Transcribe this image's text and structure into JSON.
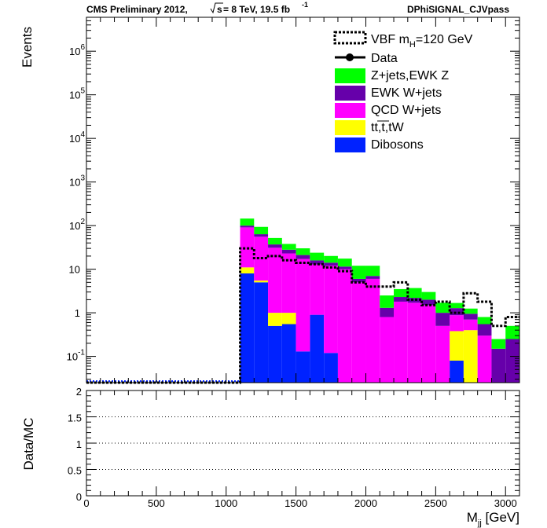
{
  "header": {
    "left": "CMS Preliminary 2012,",
    "sqrt": "s",
    "energy": " = 8 TeV, 19.5 fb",
    "lumi_exp": "-1",
    "right": "DPhiSIGNAL_CJVpass"
  },
  "chart_data": [
    {
      "type": "bar",
      "stacked": true,
      "ylabel": "Events",
      "yscale": "log",
      "ylim": [
        0.025,
        6000000
      ],
      "xlim": [
        0,
        3100
      ],
      "bin_edges": [
        0,
        100,
        200,
        300,
        400,
        500,
        600,
        700,
        800,
        900,
        1000,
        1100,
        1200,
        1300,
        1400,
        1500,
        1600,
        1700,
        1800,
        1900,
        2000,
        2100,
        2200,
        2300,
        2400,
        2500,
        2600,
        2700,
        2800,
        2900,
        3000,
        3100
      ],
      "series": [
        {
          "name": "Dibosons",
          "color": "#0022ff",
          "values": [
            0,
            0,
            0,
            0,
            0,
            0,
            0,
            0,
            0,
            0,
            0,
            8,
            5,
            0.5,
            0.55,
            0.13,
            0.9,
            0.12,
            0,
            0,
            0,
            0,
            0,
            0,
            0,
            0,
            0.08,
            0,
            0,
            0,
            0
          ]
        },
        {
          "name": "tt,t,tW",
          "color": "#ffff00",
          "values": [
            0,
            0,
            0,
            0,
            0,
            0,
            0,
            0,
            0,
            0,
            0,
            3,
            0.5,
            0.5,
            0.45,
            0,
            0,
            0,
            0,
            0,
            0,
            0,
            0,
            0,
            0,
            0,
            0.3,
            0.4,
            0,
            0,
            0
          ]
        },
        {
          "name": "QCD W+jets",
          "color": "#ff00ff",
          "values": [
            0,
            0,
            0,
            0,
            0,
            0,
            0,
            0,
            0,
            0,
            0,
            80,
            50,
            30,
            22,
            17,
            12,
            12,
            10,
            5,
            6,
            0.8,
            1.8,
            1.7,
            1.5,
            0.5,
            0.5,
            0.3,
            0.3,
            0,
            0
          ]
        },
        {
          "name": "EWK W+jets",
          "color": "#6600aa",
          "values": [
            0,
            0,
            0,
            0,
            0,
            0,
            0,
            0,
            0,
            0,
            0,
            9,
            8,
            6,
            5,
            4,
            3,
            2,
            1.5,
            1,
            1,
            0.5,
            0.5,
            0.5,
            0.5,
            0.5,
            0.4,
            0.25,
            0.25,
            0.15,
            0.25
          ]
        },
        {
          "name": "Z+jets,EWK Z",
          "color": "#00ff00",
          "values": [
            0,
            0,
            0,
            0,
            0,
            0,
            0,
            0,
            0,
            0,
            0,
            45,
            30,
            15,
            10,
            9,
            8,
            6,
            6,
            6,
            5,
            1.2,
            1.2,
            1.5,
            1.0,
            0.7,
            0.4,
            0.3,
            0.25,
            0.1,
            0.25
          ]
        }
      ],
      "signal": {
        "name": "VBF m_H=120 GeV",
        "legend_main": "VBF m",
        "legend_sub": "H",
        "legend_tail": "=120 GeV",
        "values": [
          0,
          0,
          0,
          0,
          0,
          0,
          0,
          0,
          0,
          0,
          0,
          30,
          18,
          20,
          16,
          14,
          13,
          11,
          9,
          5,
          4,
          4,
          5,
          2,
          1.5,
          1.8,
          1.0,
          2.8,
          1.8,
          0.5,
          0.8
        ]
      },
      "data": {
        "name": "Data"
      },
      "legend_order": [
        "Z+jets,EWK Z",
        "EWK W+jets",
        "QCD W+jets",
        "tt,t,tW",
        "Dibosons"
      ],
      "legend_placement": "top-right",
      "ticks": {
        "y_major": [
          0.1,
          1,
          10,
          100,
          1000,
          10000,
          100000,
          1000000
        ],
        "y_labels": [
          {
            "base": "10",
            "exp": "-1"
          },
          {
            "base": "1",
            "exp": ""
          },
          {
            "base": "10",
            "exp": ""
          },
          {
            "base": "10",
            "exp": "2"
          },
          {
            "base": "10",
            "exp": "3"
          },
          {
            "base": "10",
            "exp": "4"
          },
          {
            "base": "10",
            "exp": "5"
          },
          {
            "base": "10",
            "exp": "6"
          }
        ]
      }
    },
    {
      "type": "line",
      "ylabel": "Data/MC",
      "xlabel_main": "M",
      "xlabel_sub": "jj",
      "xlabel_tail": " [GeV]",
      "xlim": [
        0,
        3100
      ],
      "ylim": [
        0,
        2
      ],
      "grid_lines": [
        0.5,
        1,
        1.5
      ],
      "y_ticks": [
        "0",
        "0.5",
        "1",
        "1.5",
        "2"
      ],
      "y_tick_values": [
        0,
        0.5,
        1,
        1.5,
        2
      ],
      "x_ticks": [
        "0",
        "500",
        "1000",
        "1500",
        "2000",
        "2500",
        "3000"
      ],
      "x_tick_values": [
        0,
        500,
        1000,
        1500,
        2000,
        2500,
        3000
      ]
    }
  ]
}
